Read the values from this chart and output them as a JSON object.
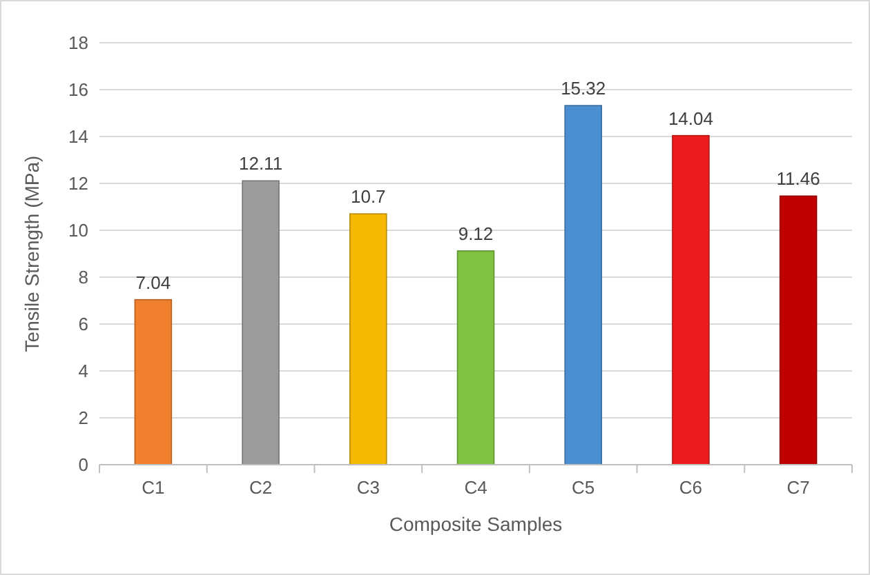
{
  "chart_data": {
    "type": "bar",
    "xlabel": "Composite Samples",
    "ylabel": "Tensile Strength (MPa)",
    "categories": [
      "C1",
      "C2",
      "C3",
      "C4",
      "C5",
      "C6",
      "C7"
    ],
    "values": [
      7.04,
      12.11,
      10.7,
      9.12,
      15.32,
      14.04,
      11.46
    ],
    "colors": [
      "#f07f2e",
      "#9b9b9b",
      "#f5b800",
      "#7fc241",
      "#4a8fd0",
      "#ee1c1c",
      "#c00000"
    ],
    "ylim": [
      0,
      18
    ],
    "yticks": [
      0,
      2,
      4,
      6,
      8,
      10,
      12,
      14,
      16,
      18
    ],
    "grid": "y",
    "data_labels": true
  }
}
